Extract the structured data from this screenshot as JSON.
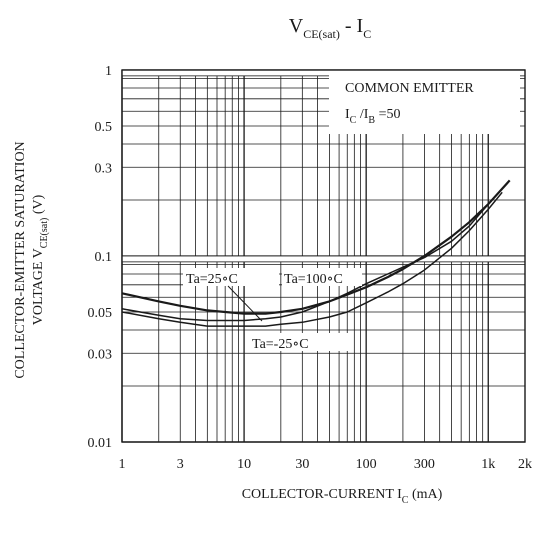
{
  "chart_data": {
    "type": "line",
    "title": {
      "main": "V",
      "main_sub": "CE(sat)",
      "mid": " - I",
      "mid_sub": "C"
    },
    "xlabel": {
      "pre": "COLLECTOR-CURRENT I",
      "sub": "C",
      "post": " (mA)"
    },
    "ylabel": {
      "line1": "COLLECTOR-EMITTER SATURATION",
      "line2_pre": "VOLTAGE V",
      "line2_sub": "CE(sat)",
      "line2_post": " (V)"
    },
    "x_scale": "log",
    "y_scale": "log",
    "xlim": [
      1,
      2000
    ],
    "ylim": [
      0.01,
      1
    ],
    "x_ticks": [
      {
        "value": 1,
        "label": "1"
      },
      {
        "value": 3,
        "label": "3"
      },
      {
        "value": 10,
        "label": "10"
      },
      {
        "value": 30,
        "label": "30"
      },
      {
        "value": 100,
        "label": "100"
      },
      {
        "value": 300,
        "label": "300"
      },
      {
        "value": 1000,
        "label": "1k"
      },
      {
        "value": 2000,
        "label": "2k"
      }
    ],
    "y_ticks": [
      {
        "value": 1,
        "label": "1"
      },
      {
        "value": 0.5,
        "label": "0.5"
      },
      {
        "value": 0.3,
        "label": "0.3"
      },
      {
        "value": 0.1,
        "label": "0.1"
      },
      {
        "value": 0.05,
        "label": "0.05"
      },
      {
        "value": 0.03,
        "label": "0.03"
      },
      {
        "value": 0.01,
        "label": "0.01"
      }
    ],
    "grid": true,
    "annotations": {
      "line1": "COMMON EMITTER",
      "line2": {
        "a": "I",
        "a_sub": "C",
        "b": " /I",
        "b_sub": "B",
        "c": " =50"
      }
    },
    "series": [
      {
        "name": "Ta=25°C",
        "label_text": "Ta=25∘C",
        "x": [
          1,
          2,
          3,
          5,
          7,
          10,
          15,
          20,
          30,
          50,
          70,
          100,
          150,
          200,
          300,
          500,
          700,
          1000,
          1500
        ],
        "y": [
          0.063,
          0.057,
          0.054,
          0.051,
          0.05,
          0.049,
          0.049,
          0.05,
          0.052,
          0.057,
          0.062,
          0.068,
          0.077,
          0.085,
          0.1,
          0.127,
          0.152,
          0.19,
          0.255
        ]
      },
      {
        "name": "Ta=100°C",
        "label_text": "Ta=100∘C",
        "x": [
          1,
          2,
          3,
          5,
          7,
          10,
          15,
          20,
          30,
          50,
          70,
          100,
          150,
          200,
          300,
          500,
          700,
          1000
        ],
        "y": [
          0.052,
          0.048,
          0.046,
          0.045,
          0.045,
          0.045,
          0.046,
          0.047,
          0.05,
          0.057,
          0.063,
          0.071,
          0.08,
          0.087,
          0.098,
          0.12,
          0.145,
          0.19
        ]
      },
      {
        "name": "Ta=-25°C",
        "label_text": "Ta=-25∘C",
        "x": [
          1,
          2,
          3,
          5,
          7,
          10,
          15,
          20,
          30,
          50,
          70,
          100,
          150,
          200,
          300,
          500,
          700,
          1000,
          1300
        ],
        "y": [
          0.05,
          0.046,
          0.044,
          0.042,
          0.042,
          0.042,
          0.042,
          0.043,
          0.044,
          0.047,
          0.05,
          0.056,
          0.064,
          0.071,
          0.084,
          0.11,
          0.137,
          0.178,
          0.22
        ]
      }
    ]
  }
}
